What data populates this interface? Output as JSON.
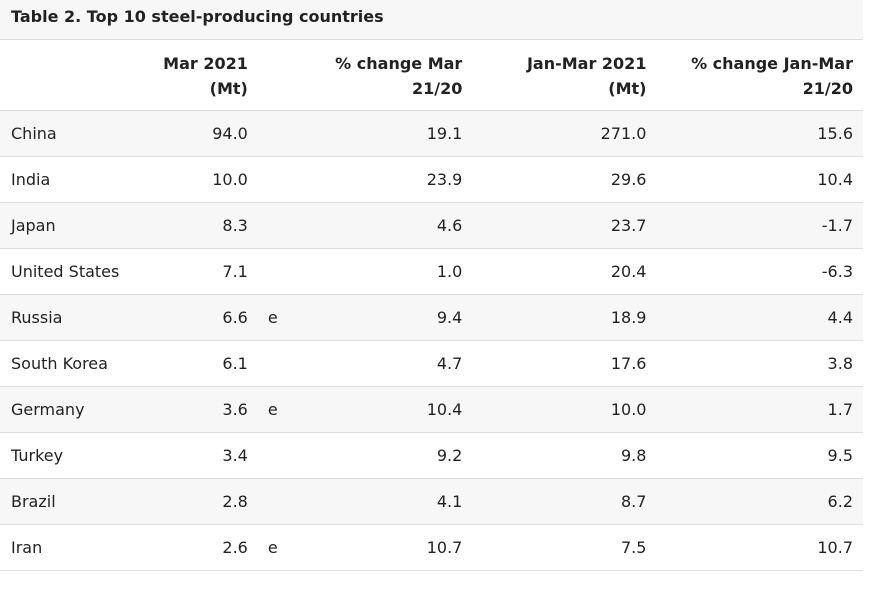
{
  "table": {
    "caption": "Table 2. Top 10 steel-producing countries",
    "headers": {
      "mar_2021": [
        "Mar 2021",
        "(Mt)"
      ],
      "pct_change_mar": [
        "% change Mar",
        "21/20"
      ],
      "jan_mar_2021": [
        "Jan-Mar 2021",
        "(Mt)"
      ],
      "pct_change_jan_mar": [
        "% change Jan-Mar",
        "21/20"
      ]
    },
    "rows": [
      {
        "country": "China",
        "mar_2021": "94.0",
        "flag": "",
        "pct_change_mar": "19.1",
        "jan_mar_2021": "271.0",
        "pct_change_jan_mar": "15.6"
      },
      {
        "country": "India",
        "mar_2021": "10.0",
        "flag": "",
        "pct_change_mar": "23.9",
        "jan_mar_2021": "29.6",
        "pct_change_jan_mar": "10.4"
      },
      {
        "country": "Japan",
        "mar_2021": "8.3",
        "flag": "",
        "pct_change_mar": "4.6",
        "jan_mar_2021": "23.7",
        "pct_change_jan_mar": "-1.7"
      },
      {
        "country": "United States",
        "mar_2021": "7.1",
        "flag": "",
        "pct_change_mar": "1.0",
        "jan_mar_2021": "20.4",
        "pct_change_jan_mar": "-6.3"
      },
      {
        "country": "Russia",
        "mar_2021": "6.6",
        "flag": "e",
        "pct_change_mar": "9.4",
        "jan_mar_2021": "18.9",
        "pct_change_jan_mar": "4.4"
      },
      {
        "country": "South Korea",
        "mar_2021": "6.1",
        "flag": "",
        "pct_change_mar": "4.7",
        "jan_mar_2021": "17.6",
        "pct_change_jan_mar": "3.8"
      },
      {
        "country": "Germany",
        "mar_2021": "3.6",
        "flag": "e",
        "pct_change_mar": "10.4",
        "jan_mar_2021": "10.0",
        "pct_change_jan_mar": "1.7"
      },
      {
        "country": "Turkey",
        "mar_2021": "3.4",
        "flag": "",
        "pct_change_mar": "9.2",
        "jan_mar_2021": "9.8",
        "pct_change_jan_mar": "9.5"
      },
      {
        "country": "Brazil",
        "mar_2021": "2.8",
        "flag": "",
        "pct_change_mar": "4.1",
        "jan_mar_2021": "8.7",
        "pct_change_jan_mar": "6.2"
      },
      {
        "country": "Iran",
        "mar_2021": "2.6",
        "flag": "e",
        "pct_change_mar": "10.7",
        "jan_mar_2021": "7.5",
        "pct_change_jan_mar": "10.7"
      }
    ]
  }
}
